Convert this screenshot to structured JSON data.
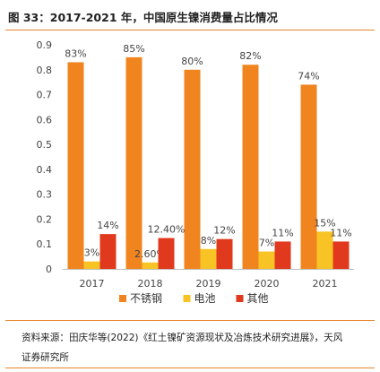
{
  "title": "图 33：2017-2021 年，中国原生镍消费量占比情况",
  "source_line1": "资料来源：田庆华等(2022)《红土镍矿资源现状及冶炼技术研究进展》，天风",
  "source_line2": "证券研究所",
  "chart_data": {
    "type": "bar",
    "categories": [
      "2017",
      "2018",
      "2019",
      "2020",
      "2021"
    ],
    "series": [
      {
        "name": "不锈钢",
        "color": "#f0841f",
        "values": [
          0.83,
          0.85,
          0.8,
          0.82,
          0.74
        ],
        "labels": [
          "83%",
          "85%",
          "80%",
          "82%",
          "74%"
        ]
      },
      {
        "name": "电池",
        "color": "#f7c325",
        "values": [
          0.03,
          0.026,
          0.08,
          0.07,
          0.15
        ],
        "labels": [
          "3%",
          "2.60%",
          "8%",
          "7%",
          "15%"
        ]
      },
      {
        "name": "其他",
        "color": "#e0391d",
        "values": [
          0.14,
          0.124,
          0.12,
          0.11,
          0.11
        ],
        "labels": [
          "14%",
          "12.40%",
          "12%",
          "11%",
          "11%"
        ]
      }
    ],
    "ylim": [
      0,
      0.9
    ],
    "yticks": [
      "0",
      "0.1",
      "0.2",
      "0.3",
      "0.4",
      "0.5",
      "0.6",
      "0.7",
      "0.8",
      "0.9"
    ],
    "legend": "bottom",
    "grid": false
  }
}
